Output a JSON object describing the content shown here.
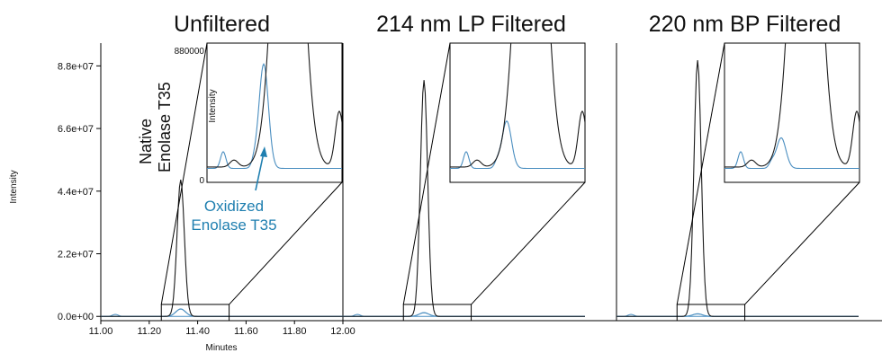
{
  "colors": {
    "native": "#1a1a1a",
    "oxidized": "#4a8ec0",
    "annotation": "#1f7fb0",
    "axis": "#000000"
  },
  "chart_data": {
    "type": "line",
    "xlabel": "Minutes",
    "ylabel": "Intensity",
    "x_ticks": [
      "11.00",
      "11.20",
      "11.40",
      "11.60",
      "11.80",
      "12.00"
    ],
    "y_ticks": [
      "0.0e+00",
      "2.2e+07",
      "4.4e+07",
      "6.6e+07",
      "8.8e+07"
    ],
    "xlim": [
      11.0,
      12.0
    ],
    "ylim": [
      -1500000,
      96000000
    ],
    "zoom_region": {
      "x": [
        11.25,
        11.53
      ],
      "y": [
        -1500000,
        4200000
      ]
    },
    "inset": {
      "ylabel": "Intensity",
      "y_ticks": [
        "0",
        "880000"
      ],
      "ylim": [
        0,
        880000
      ]
    },
    "annotations": {
      "native": [
        "Native",
        "Enolase T35"
      ],
      "oxidized": [
        "Oxidized",
        "Enolase T35"
      ]
    },
    "panels": [
      {
        "title": "Unfiltered",
        "series": [
          {
            "peak_time": 11.33,
            "peak_height": 48000000,
            "width": 0.015
          },
          {
            "peak_time": 11.33,
            "peak_height": 2600000,
            "width": 0.02
          }
        ]
      },
      {
        "title": "214 nm LP Filtered",
        "series": [
          {
            "peak_time": 11.335,
            "peak_height": 83000000,
            "width": 0.015
          },
          {
            "peak_time": 11.335,
            "peak_height": 1300000,
            "width": 0.02
          }
        ]
      },
      {
        "title": "220 nm BP Filtered",
        "series": [
          {
            "peak_time": 11.335,
            "peak_height": 90000000,
            "width": 0.015
          },
          {
            "peak_time": 11.335,
            "peak_height": 900000,
            "width": 0.02
          }
        ]
      }
    ]
  }
}
